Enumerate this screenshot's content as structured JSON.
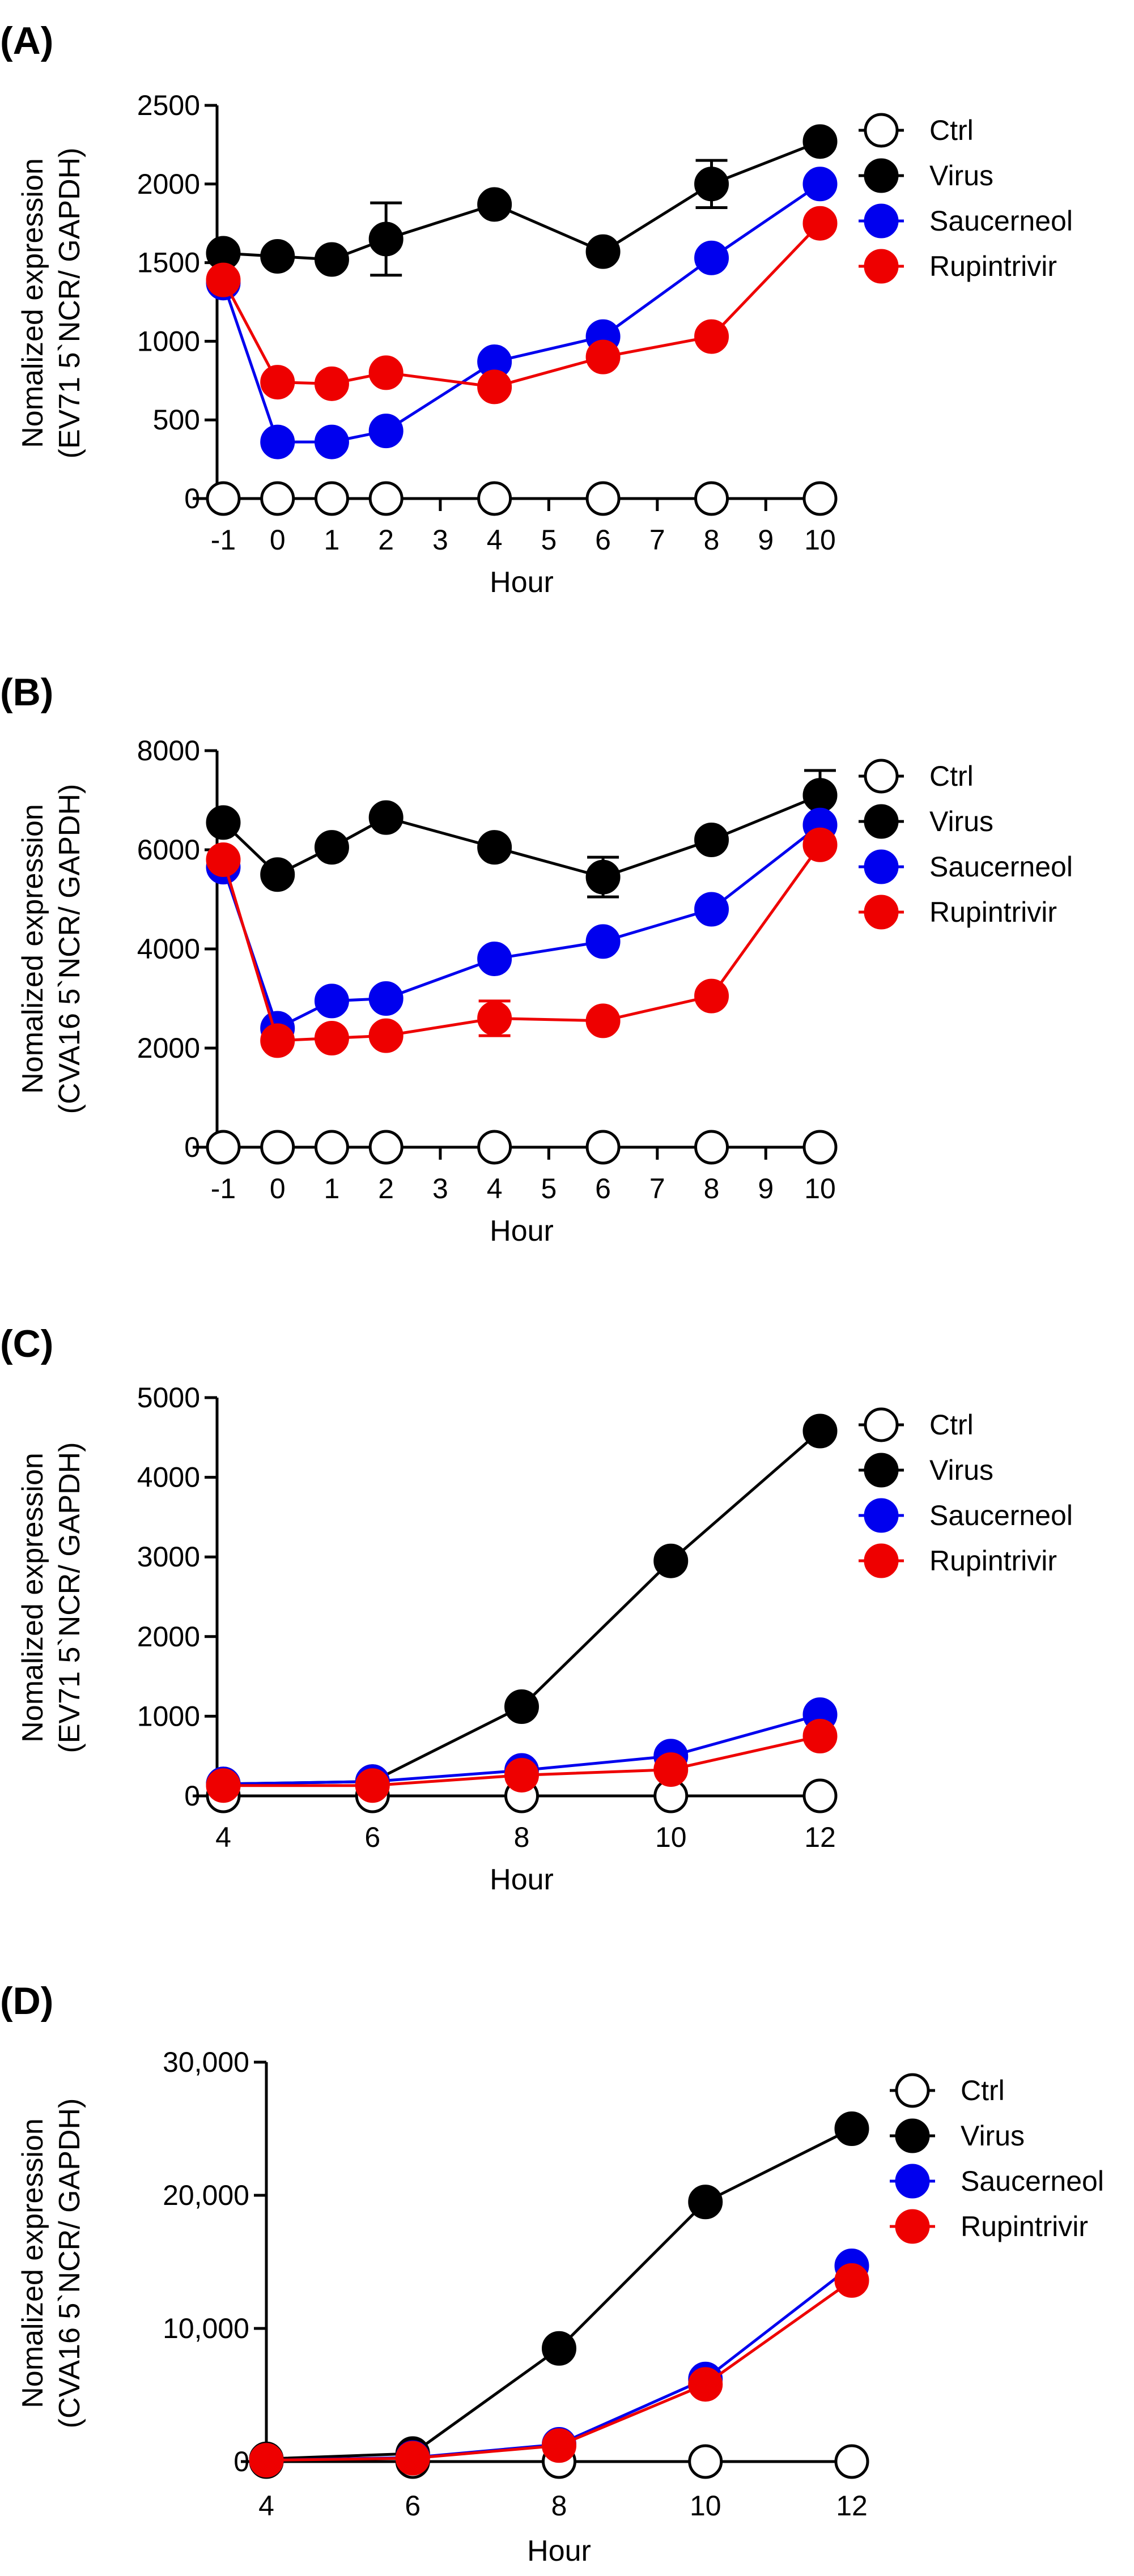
{
  "colors": {
    "ctrl": "#ffffff",
    "virus": "#000000",
    "saucerneol": "#0000ee",
    "rupintrivir": "#ee0000"
  },
  "chart_data": [
    {
      "type": "line",
      "panel_label": "(A)",
      "xlabel": "Hour",
      "ylabel_line1": "Nomalized expression",
      "ylabel_line2": "(EV71 5`NCR/ GAPDH)",
      "x": [
        -1,
        0,
        1,
        2,
        4,
        6,
        8,
        10
      ],
      "xlim": [
        -1,
        10
      ],
      "xticks": [
        -1,
        0,
        1,
        2,
        3,
        4,
        5,
        6,
        7,
        8,
        9,
        10
      ],
      "xtick_labels": [
        "-1",
        "0",
        "1",
        "2",
        "3",
        "4",
        "5",
        "6",
        "7",
        "8",
        "9",
        "10"
      ],
      "ylim": [
        0,
        2500
      ],
      "yticks": [
        0,
        500,
        1000,
        1500,
        2000,
        2500
      ],
      "ytick_labels": [
        "0",
        "500",
        "1000",
        "1500",
        "2000",
        "2500"
      ],
      "series": [
        {
          "name": "Ctrl",
          "key": "ctrl",
          "values": [
            0,
            0,
            0,
            0,
            0,
            0,
            0,
            0
          ]
        },
        {
          "name": "Virus",
          "key": "virus",
          "values": [
            1560,
            1540,
            1520,
            1650,
            1870,
            1570,
            2000,
            2270
          ],
          "err": [
            0,
            0,
            0,
            230,
            0,
            0,
            150,
            0
          ]
        },
        {
          "name": "Saucerneol",
          "key": "saucerneol",
          "values": [
            1370,
            360,
            360,
            430,
            870,
            1030,
            1530,
            2000
          ]
        },
        {
          "name": "Rupintrivir",
          "key": "rupintrivir",
          "values": [
            1390,
            740,
            730,
            800,
            710,
            900,
            1030,
            1750
          ]
        }
      ]
    },
    {
      "type": "line",
      "panel_label": "(B)",
      "xlabel": "Hour",
      "ylabel_line1": "Nomalized expression",
      "ylabel_line2": "(CVA16 5`NCR/ GAPDH)",
      "x": [
        -1,
        0,
        1,
        2,
        4,
        6,
        8,
        10
      ],
      "xlim": [
        -1,
        10
      ],
      "xticks": [
        -1,
        0,
        1,
        2,
        3,
        4,
        5,
        6,
        7,
        8,
        9,
        10
      ],
      "xtick_labels": [
        "-1",
        "0",
        "1",
        "2",
        "3",
        "4",
        "5",
        "6",
        "7",
        "8",
        "9",
        "10"
      ],
      "ylim": [
        0,
        8000
      ],
      "yticks": [
        0,
        2000,
        4000,
        6000,
        8000
      ],
      "ytick_labels": [
        "0",
        "2000",
        "4000",
        "6000",
        "8000"
      ],
      "series": [
        {
          "name": "Ctrl",
          "key": "ctrl",
          "values": [
            0,
            0,
            0,
            0,
            0,
            0,
            0,
            0
          ]
        },
        {
          "name": "Virus",
          "key": "virus",
          "values": [
            6550,
            5500,
            6050,
            6650,
            6050,
            5450,
            6200,
            7100
          ],
          "err": [
            0,
            0,
            0,
            0,
            0,
            400,
            0,
            500
          ]
        },
        {
          "name": "Saucerneol",
          "key": "saucerneol",
          "values": [
            5650,
            2400,
            2950,
            3000,
            3800,
            4150,
            4800,
            6500
          ]
        },
        {
          "name": "Rupintrivir",
          "key": "rupintrivir",
          "values": [
            5800,
            2150,
            2200,
            2250,
            2600,
            2550,
            3050,
            6100
          ],
          "err": [
            0,
            0,
            0,
            0,
            350,
            0,
            0,
            0
          ]
        }
      ]
    },
    {
      "type": "line",
      "panel_label": "(C)",
      "xlabel": "Hour",
      "ylabel_line1": "Nomalized expression",
      "ylabel_line2": "(EV71 5`NCR/ GAPDH)",
      "x": [
        4,
        6,
        8,
        10,
        12
      ],
      "xlim": [
        4,
        12
      ],
      "xticks": [
        4,
        6,
        8,
        10,
        12
      ],
      "xtick_labels": [
        "4",
        "6",
        "8",
        "10",
        "12"
      ],
      "ylim": [
        0,
        5000
      ],
      "yticks": [
        0,
        1000,
        2000,
        3000,
        4000,
        5000
      ],
      "ytick_labels": [
        "0",
        "1000",
        "2000",
        "3000",
        "4000",
        "5000"
      ],
      "series": [
        {
          "name": "Ctrl",
          "key": "ctrl",
          "values": [
            0,
            0,
            0,
            0,
            0
          ]
        },
        {
          "name": "Virus",
          "key": "virus",
          "values": [
            150,
            180,
            1120,
            2950,
            4580
          ]
        },
        {
          "name": "Saucerneol",
          "key": "saucerneol",
          "values": [
            150,
            180,
            320,
            500,
            1020
          ]
        },
        {
          "name": "Rupintrivir",
          "key": "rupintrivir",
          "values": [
            130,
            130,
            260,
            330,
            750
          ]
        }
      ]
    },
    {
      "type": "line",
      "panel_label": "(D)",
      "xlabel": "Hour",
      "ylabel_line1": "Nomalized expression",
      "ylabel_line2": "(CVA16 5`NCR/ GAPDH)",
      "x": [
        4,
        6,
        8,
        10,
        12
      ],
      "xlim": [
        4,
        12
      ],
      "xticks": [
        4,
        6,
        8,
        10,
        12
      ],
      "xtick_labels": [
        "4",
        "6",
        "8",
        "10",
        "12"
      ],
      "ylim": [
        0,
        30000
      ],
      "yticks": [
        0,
        10000,
        20000,
        30000
      ],
      "ytick_labels": [
        "0",
        "10,000",
        "20,000",
        "30,000"
      ],
      "series": [
        {
          "name": "Ctrl",
          "key": "ctrl",
          "values": [
            0,
            0,
            0,
            0,
            0
          ]
        },
        {
          "name": "Virus",
          "key": "virus",
          "values": [
            200,
            600,
            8500,
            19500,
            25000
          ]
        },
        {
          "name": "Saucerneol",
          "key": "saucerneol",
          "values": [
            100,
            300,
            1300,
            6200,
            14700
          ]
        },
        {
          "name": "Rupintrivir",
          "key": "rupintrivir",
          "values": [
            100,
            250,
            1200,
            5800,
            13600
          ]
        }
      ]
    }
  ]
}
